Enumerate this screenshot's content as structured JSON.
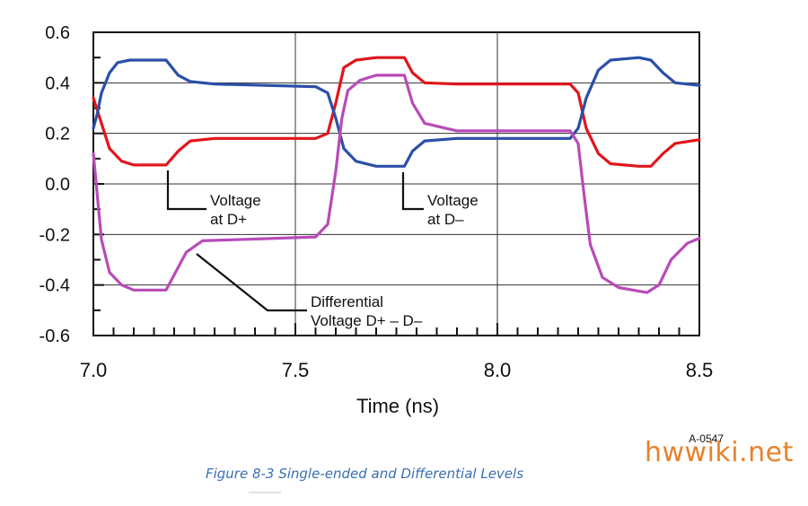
{
  "chart_data": {
    "type": "line",
    "xlabel": "Time (ns)",
    "ylabel": "",
    "xlim": [
      7.0,
      8.5
    ],
    "ylim": [
      -0.6,
      0.6
    ],
    "x_ticks": [
      7.0,
      7.5,
      8.0,
      8.5
    ],
    "x_tick_labels": [
      "7.0",
      "7.5",
      "8.0",
      "8.5"
    ],
    "y_ticks": [
      0.6,
      0.4,
      0.2,
      0.0,
      -0.2,
      -0.4,
      -0.6
    ],
    "y_tick_labels": [
      "0.6",
      "0.4",
      "0.2",
      "0.0",
      "-0.2",
      "-0.4",
      "-0.6"
    ],
    "grid": true,
    "series": [
      {
        "name": "Voltage at D+",
        "color": "#e0161c",
        "x": [
          7.0,
          7.02,
          7.04,
          7.07,
          7.1,
          7.18,
          7.21,
          7.24,
          7.3,
          7.55,
          7.58,
          7.6,
          7.62,
          7.65,
          7.7,
          7.77,
          7.79,
          7.82,
          7.9,
          8.18,
          8.2,
          8.22,
          8.25,
          8.28,
          8.35,
          8.38,
          8.41,
          8.44,
          8.5
        ],
        "y": [
          0.34,
          0.24,
          0.14,
          0.09,
          0.075,
          0.075,
          0.13,
          0.17,
          0.18,
          0.18,
          0.2,
          0.32,
          0.46,
          0.49,
          0.5,
          0.5,
          0.44,
          0.4,
          0.395,
          0.395,
          0.36,
          0.22,
          0.12,
          0.08,
          0.07,
          0.07,
          0.12,
          0.16,
          0.175
        ]
      },
      {
        "name": "Voltage at D–",
        "color": "#2b4fa8",
        "x": [
          7.0,
          7.01,
          7.02,
          7.04,
          7.06,
          7.09,
          7.18,
          7.21,
          7.24,
          7.3,
          7.55,
          7.58,
          7.6,
          7.62,
          7.65,
          7.7,
          7.77,
          7.79,
          7.82,
          7.9,
          8.18,
          8.2,
          8.22,
          8.25,
          8.28,
          8.35,
          8.38,
          8.41,
          8.44,
          8.5
        ],
        "y": [
          0.22,
          0.28,
          0.36,
          0.44,
          0.48,
          0.49,
          0.49,
          0.43,
          0.405,
          0.395,
          0.385,
          0.36,
          0.26,
          0.14,
          0.09,
          0.07,
          0.07,
          0.13,
          0.17,
          0.18,
          0.18,
          0.22,
          0.34,
          0.45,
          0.49,
          0.5,
          0.49,
          0.44,
          0.4,
          0.39
        ]
      },
      {
        "name": "Differential Voltage D+ – D–",
        "color": "#b84bb8",
        "x": [
          7.0,
          7.01,
          7.02,
          7.04,
          7.07,
          7.1,
          7.18,
          7.2,
          7.23,
          7.27,
          7.55,
          7.58,
          7.6,
          7.615,
          7.63,
          7.66,
          7.7,
          7.77,
          7.79,
          7.82,
          7.9,
          8.18,
          8.2,
          8.215,
          8.23,
          8.26,
          8.3,
          8.37,
          8.4,
          8.43,
          8.47,
          8.5
        ],
        "y": [
          0.12,
          -0.05,
          -0.22,
          -0.35,
          -0.4,
          -0.42,
          -0.42,
          -0.36,
          -0.27,
          -0.225,
          -0.21,
          -0.16,
          0.05,
          0.26,
          0.37,
          0.41,
          0.43,
          0.43,
          0.32,
          0.24,
          0.21,
          0.21,
          0.16,
          -0.05,
          -0.24,
          -0.37,
          -0.41,
          -0.43,
          -0.4,
          -0.3,
          -0.235,
          -0.215
        ]
      }
    ],
    "annotations": [
      {
        "lines": [
          "Voltage",
          "at D+"
        ],
        "series": "Voltage at D+"
      },
      {
        "lines": [
          "Voltage",
          "at D–"
        ],
        "series": "Voltage at D–"
      },
      {
        "lines": [
          "Differential",
          "Voltage D+ – D–"
        ],
        "series": "Differential Voltage D+ – D–"
      }
    ]
  },
  "figure_number": "A-0547",
  "caption": "Figure 8-3 Single-ended and Differential Levels",
  "watermark": "hwwiki.net"
}
